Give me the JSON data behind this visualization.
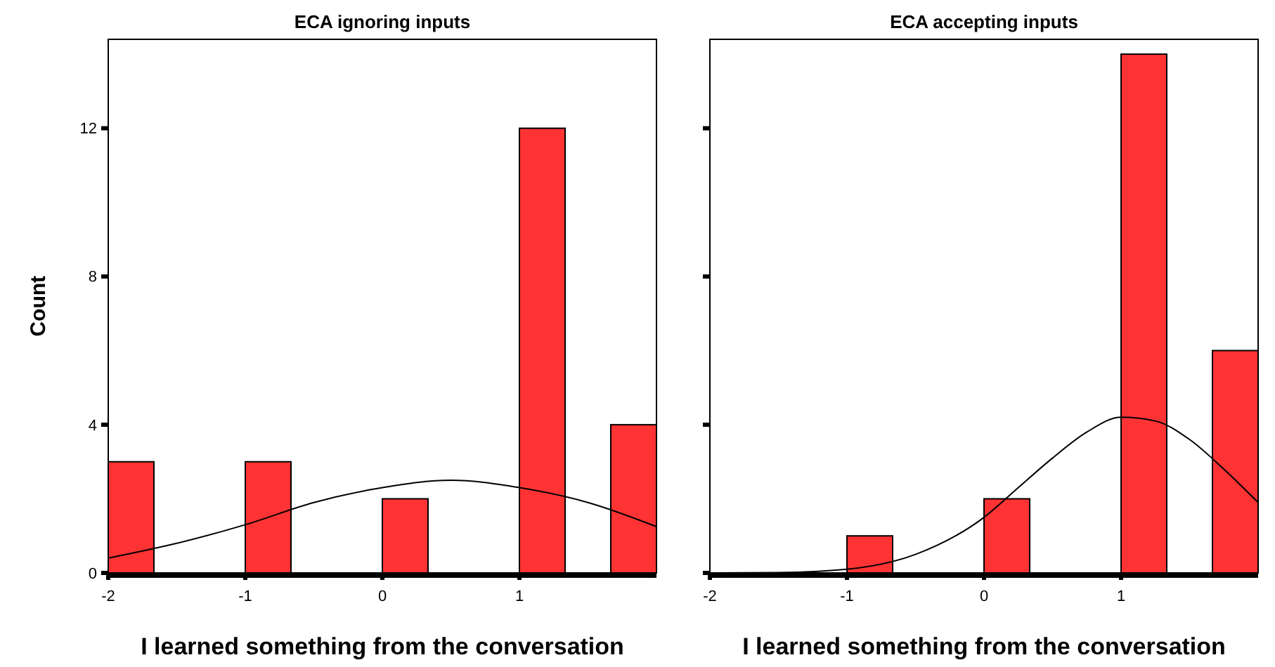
{
  "chart_data": [
    {
      "type": "histogram",
      "title": "ECA ignoring inputs",
      "xlabel": "I learned something from the conversation",
      "ylabel": "Count",
      "bins": [
        -2,
        -1.6667,
        -1.3333,
        -1,
        -0.6667,
        -0.3333,
        0,
        0.3333,
        0.6667,
        1,
        1.3333,
        1.6667,
        2
      ],
      "values": [
        3,
        0,
        0,
        3,
        0,
        0,
        2,
        0,
        0,
        12,
        0,
        4
      ],
      "color": "#ff3333",
      "xlim": [
        -2,
        2
      ],
      "xticks": [
        -2,
        -1,
        0,
        1
      ],
      "ylim": [
        0,
        14.4
      ],
      "yticks": [
        0,
        4,
        8,
        12
      ],
      "series": [
        {
          "type": "line",
          "color": "#000000",
          "x": [
            -2,
            -1.5,
            -1,
            -0.5,
            0,
            0.5,
            1,
            1.5,
            2
          ],
          "values": [
            0.4,
            0.8,
            1.3,
            1.9,
            2.3,
            2.5,
            2.3,
            1.9,
            1.25
          ]
        }
      ]
    },
    {
      "type": "histogram",
      "title": "ECA accepting inputs",
      "xlabel": "I learned something from the conversation",
      "bins": [
        -2,
        -1.6667,
        -1.3333,
        -1,
        -0.6667,
        -0.3333,
        0,
        0.3333,
        0.6667,
        1,
        1.3333,
        1.6667,
        2
      ],
      "values": [
        0,
        0,
        0,
        1,
        0,
        0,
        2,
        0,
        0,
        14,
        0,
        6
      ],
      "color": "#ff3333",
      "xlim": [
        -2,
        2
      ],
      "xticks": [
        -2,
        -1,
        0,
        1
      ],
      "ylim": [
        0,
        14.4
      ],
      "yticks": [
        0,
        4,
        8,
        12
      ],
      "tick_labels": "x",
      "series": [
        {
          "type": "line",
          "color": "#000000",
          "x": [
            -2,
            -1.5,
            -1,
            -0.5,
            0,
            0.25,
            0.5,
            0.75,
            1,
            1.25,
            1.5,
            1.75,
            2
          ],
          "values": [
            0,
            0.01,
            0.1,
            0.5,
            1.5,
            2.3,
            3.1,
            3.8,
            4.2,
            4.1,
            3.6,
            2.8,
            1.9
          ]
        }
      ]
    }
  ]
}
